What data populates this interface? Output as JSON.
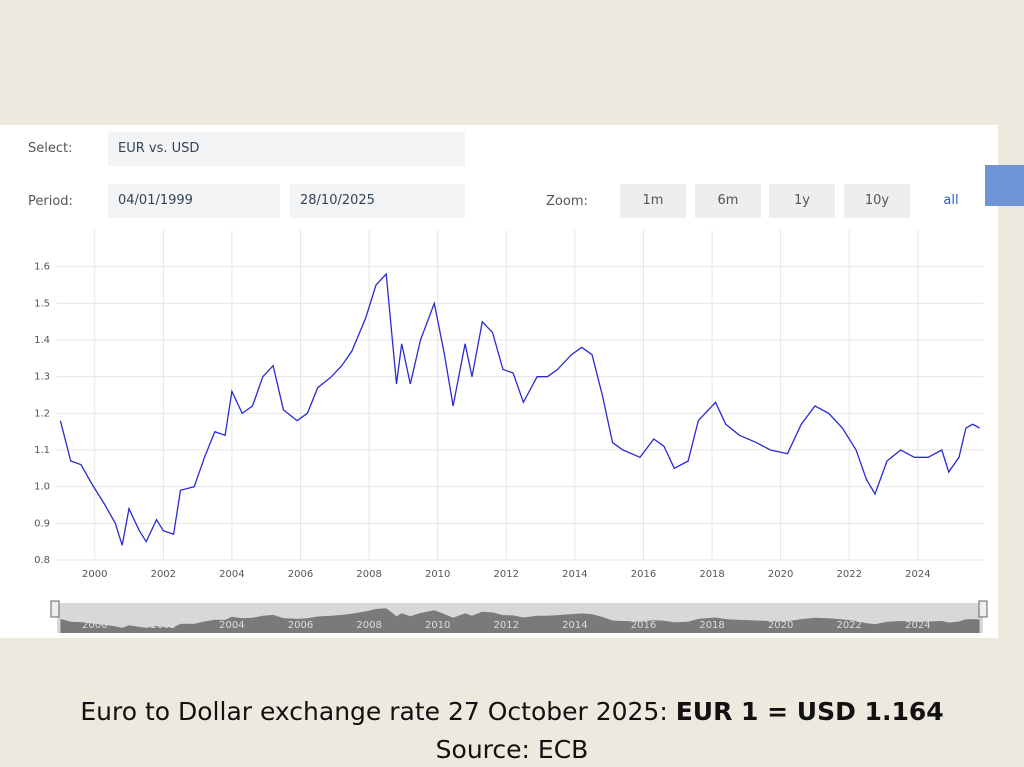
{
  "controls": {
    "select_label": "Select:",
    "select_value": "EUR vs. USD",
    "period_label": "Period:",
    "start_date": "04/01/1999",
    "end_date": "28/10/2025",
    "zoom_label": "Zoom:",
    "zoom_buttons": [
      "1m",
      "6m",
      "1y",
      "10y",
      "all"
    ]
  },
  "chart_data": {
    "type": "line",
    "x": [
      1999.0,
      1999.3,
      1999.6,
      1999.9,
      2000.3,
      2000.6,
      2000.8,
      2001.0,
      2001.3,
      2001.5,
      2001.8,
      2002.0,
      2002.3,
      2002.5,
      2002.9,
      2003.2,
      2003.5,
      2003.8,
      2004.0,
      2004.3,
      2004.6,
      2004.9,
      2005.2,
      2005.5,
      2005.9,
      2006.2,
      2006.5,
      2006.9,
      2007.2,
      2007.5,
      2007.9,
      2008.2,
      2008.5,
      2008.8,
      2008.95,
      2009.2,
      2009.5,
      2009.9,
      2010.2,
      2010.45,
      2010.8,
      2011.0,
      2011.3,
      2011.6,
      2011.9,
      2012.2,
      2012.5,
      2012.9,
      2013.2,
      2013.5,
      2013.9,
      2014.2,
      2014.5,
      2014.8,
      2015.1,
      2015.4,
      2015.9,
      2016.3,
      2016.6,
      2016.9,
      2017.3,
      2017.6,
      2018.1,
      2018.4,
      2018.8,
      2019.3,
      2019.7,
      2020.2,
      2020.6,
      2021.0,
      2021.4,
      2021.8,
      2022.2,
      2022.5,
      2022.75,
      2023.1,
      2023.5,
      2023.9,
      2024.3,
      2024.7,
      2024.9,
      2025.2,
      2025.4,
      2025.6,
      2025.8
    ],
    "series": [
      {
        "name": "EUR vs. USD",
        "color": "#2b2bd0",
        "values": [
          1.18,
          1.07,
          1.06,
          1.01,
          0.95,
          0.9,
          0.84,
          0.94,
          0.88,
          0.85,
          0.91,
          0.88,
          0.87,
          0.99,
          1.0,
          1.08,
          1.15,
          1.14,
          1.26,
          1.2,
          1.22,
          1.3,
          1.33,
          1.21,
          1.18,
          1.2,
          1.27,
          1.3,
          1.33,
          1.37,
          1.46,
          1.55,
          1.58,
          1.28,
          1.39,
          1.28,
          1.4,
          1.5,
          1.36,
          1.22,
          1.39,
          1.3,
          1.45,
          1.42,
          1.32,
          1.31,
          1.23,
          1.3,
          1.3,
          1.32,
          1.36,
          1.38,
          1.36,
          1.25,
          1.12,
          1.1,
          1.08,
          1.13,
          1.11,
          1.05,
          1.07,
          1.18,
          1.23,
          1.17,
          1.14,
          1.12,
          1.1,
          1.09,
          1.17,
          1.22,
          1.2,
          1.16,
          1.1,
          1.02,
          0.98,
          1.07,
          1.1,
          1.08,
          1.08,
          1.1,
          1.04,
          1.08,
          1.16,
          1.17,
          1.16
        ]
      }
    ],
    "xlim": [
      1998.9,
      2025.9
    ],
    "xticks": [
      2000,
      2002,
      2004,
      2006,
      2008,
      2010,
      2012,
      2014,
      2016,
      2018,
      2020,
      2022,
      2024
    ],
    "ylim": [
      0.8,
      1.7
    ],
    "yticks": [
      0.8,
      0.9,
      {
        "value": 1,
        "label": "1.0"
      },
      1.1,
      1.2,
      1.3,
      1.4,
      1.5,
      1.6
    ],
    "grid": true
  },
  "caption": {
    "text": "Euro to Dollar exchange rate 27 October 2025: ",
    "bold": "EUR 1 = USD 1.164",
    "source": "Source: ECB"
  }
}
